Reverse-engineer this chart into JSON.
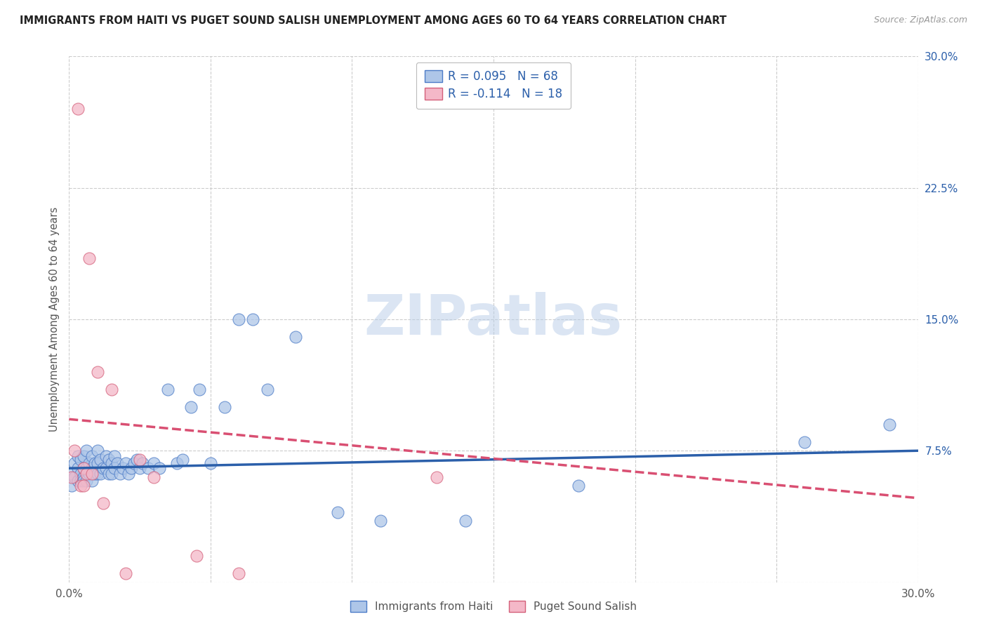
{
  "title": "IMMIGRANTS FROM HAITI VS PUGET SOUND SALISH UNEMPLOYMENT AMONG AGES 60 TO 64 YEARS CORRELATION CHART",
  "source": "Source: ZipAtlas.com",
  "ylabel": "Unemployment Among Ages 60 to 64 years",
  "xlim": [
    0.0,
    0.3
  ],
  "ylim": [
    0.0,
    0.3
  ],
  "xticks": [
    0.0,
    0.05,
    0.1,
    0.15,
    0.2,
    0.25,
    0.3
  ],
  "yticks": [
    0.0,
    0.075,
    0.15,
    0.225,
    0.3
  ],
  "R_blue": 0.095,
  "N_blue": 68,
  "R_pink": -0.114,
  "N_pink": 18,
  "blue_color": "#aec6e8",
  "blue_edge": "#4d7cc7",
  "pink_color": "#f4b8c8",
  "pink_edge": "#d4607a",
  "blue_line_color": "#2b5faa",
  "pink_line_color": "#d94f72",
  "legend_label_blue": "Immigrants from Haiti",
  "legend_label_pink": "Puget Sound Salish",
  "watermark": "ZIPatlas",
  "blue_line_x0": 0.0,
  "blue_line_y0": 0.065,
  "blue_line_x1": 0.3,
  "blue_line_y1": 0.075,
  "pink_line_x0": 0.0,
  "pink_line_y0": 0.093,
  "pink_line_x1": 0.3,
  "pink_line_y1": 0.048,
  "blue_x": [
    0.001,
    0.001,
    0.002,
    0.002,
    0.003,
    0.003,
    0.003,
    0.004,
    0.004,
    0.004,
    0.005,
    0.005,
    0.005,
    0.005,
    0.006,
    0.006,
    0.006,
    0.007,
    0.007,
    0.008,
    0.008,
    0.008,
    0.009,
    0.009,
    0.01,
    0.01,
    0.01,
    0.011,
    0.011,
    0.012,
    0.013,
    0.013,
    0.014,
    0.014,
    0.015,
    0.015,
    0.016,
    0.016,
    0.017,
    0.018,
    0.019,
    0.02,
    0.021,
    0.022,
    0.023,
    0.024,
    0.025,
    0.026,
    0.028,
    0.03,
    0.032,
    0.035,
    0.038,
    0.04,
    0.043,
    0.046,
    0.05,
    0.055,
    0.06,
    0.065,
    0.07,
    0.08,
    0.095,
    0.11,
    0.14,
    0.18,
    0.26,
    0.29
  ],
  "blue_y": [
    0.062,
    0.055,
    0.068,
    0.06,
    0.072,
    0.065,
    0.058,
    0.07,
    0.062,
    0.058,
    0.065,
    0.06,
    0.072,
    0.058,
    0.075,
    0.065,
    0.058,
    0.068,
    0.062,
    0.072,
    0.065,
    0.058,
    0.068,
    0.062,
    0.075,
    0.068,
    0.062,
    0.07,
    0.062,
    0.065,
    0.072,
    0.065,
    0.07,
    0.062,
    0.068,
    0.062,
    0.072,
    0.065,
    0.068,
    0.062,
    0.065,
    0.068,
    0.062,
    0.065,
    0.068,
    0.07,
    0.065,
    0.068,
    0.065,
    0.068,
    0.065,
    0.11,
    0.068,
    0.07,
    0.1,
    0.11,
    0.068,
    0.1,
    0.15,
    0.15,
    0.11,
    0.14,
    0.04,
    0.035,
    0.035,
    0.055,
    0.08,
    0.09
  ],
  "pink_x": [
    0.001,
    0.002,
    0.003,
    0.004,
    0.005,
    0.005,
    0.006,
    0.007,
    0.008,
    0.01,
    0.012,
    0.015,
    0.02,
    0.025,
    0.03,
    0.045,
    0.06,
    0.13
  ],
  "pink_y": [
    0.06,
    0.075,
    0.27,
    0.055,
    0.065,
    0.055,
    0.062,
    0.185,
    0.062,
    0.12,
    0.045,
    0.11,
    0.005,
    0.07,
    0.06,
    0.015,
    0.005,
    0.06
  ]
}
